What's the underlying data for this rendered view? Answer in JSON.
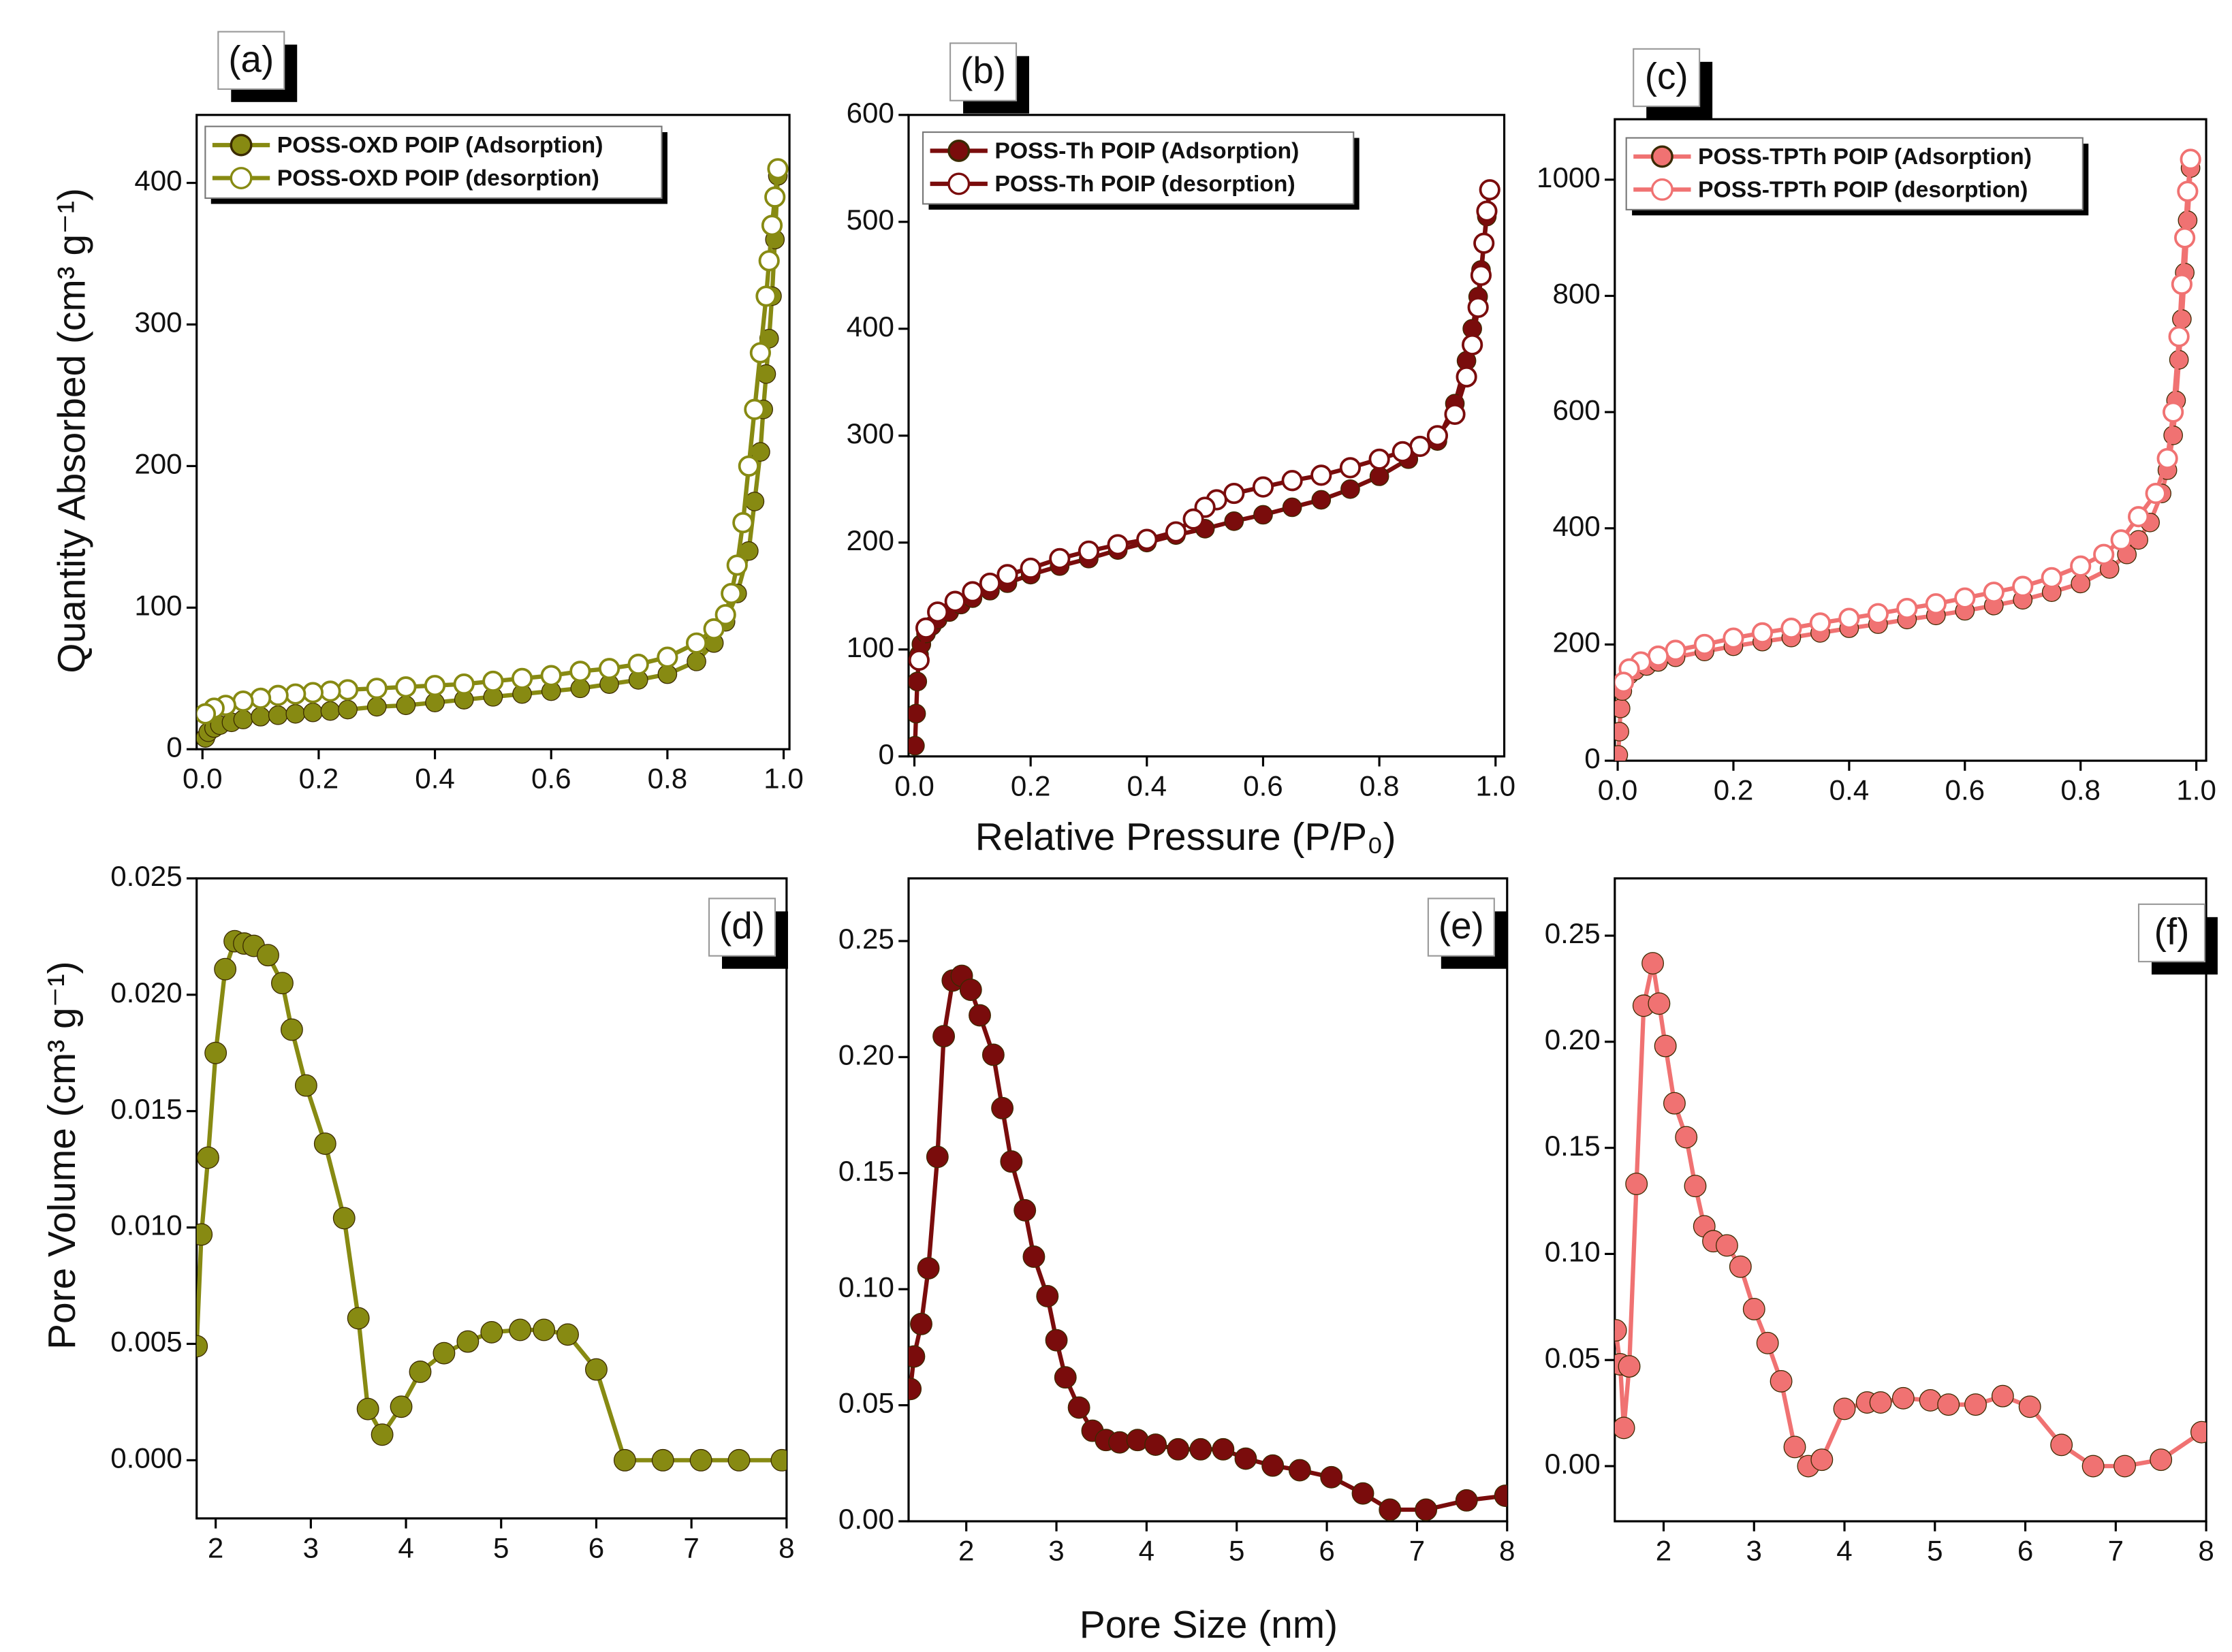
{
  "chart_data": [
    {
      "type": "line",
      "panel_label": "(a)",
      "ylabel": "Quantity Absorbed (cm³ g⁻¹)",
      "xlim": [
        -0.01,
        1.01
      ],
      "ylim": [
        0,
        448
      ],
      "xticks": [
        {
          "value": 0,
          "label": "0.0"
        },
        0.2,
        0.4,
        0.6,
        0.8,
        {
          "value": 1,
          "label": "1.0"
        }
      ],
      "yticks": [
        0,
        100,
        200,
        300,
        400
      ],
      "series": [
        {
          "name": "POSS-OXD POIP (Adsorption)",
          "color": "#878a12",
          "marker": "filled",
          "x": [
            0.005,
            0.01,
            0.02,
            0.03,
            0.05,
            0.07,
            0.1,
            0.13,
            0.16,
            0.19,
            0.22,
            0.25,
            0.3,
            0.35,
            0.4,
            0.45,
            0.5,
            0.55,
            0.6,
            0.65,
            0.7,
            0.75,
            0.8,
            0.85,
            0.88,
            0.9,
            0.92,
            0.94,
            0.95,
            0.96,
            0.965,
            0.97,
            0.975,
            0.98,
            0.985,
            0.99
          ],
          "values": [
            8,
            12,
            15,
            17,
            19,
            21,
            23,
            24,
            25,
            26,
            27,
            28,
            30,
            31,
            33,
            35,
            37,
            39,
            41,
            43,
            46,
            49,
            53,
            62,
            75,
            90,
            110,
            140,
            175,
            210,
            240,
            265,
            290,
            320,
            360,
            405
          ]
        },
        {
          "name": "POSS-OXD POIP (desorption)",
          "color": "#878a12",
          "marker": "open",
          "x": [
            0.99,
            0.985,
            0.98,
            0.975,
            0.97,
            0.96,
            0.95,
            0.94,
            0.93,
            0.92,
            0.91,
            0.9,
            0.88,
            0.85,
            0.8,
            0.75,
            0.7,
            0.65,
            0.6,
            0.55,
            0.5,
            0.45,
            0.4,
            0.35,
            0.3,
            0.25,
            0.22,
            0.19,
            0.16,
            0.13,
            0.1,
            0.07,
            0.04,
            0.02,
            0.005
          ],
          "values": [
            410,
            390,
            370,
            345,
            320,
            280,
            240,
            200,
            160,
            130,
            110,
            95,
            85,
            75,
            65,
            60,
            57,
            55,
            52,
            50,
            48,
            46,
            45,
            44,
            43,
            42,
            41,
            40,
            39,
            38,
            36,
            34,
            31,
            29,
            25
          ]
        }
      ]
    },
    {
      "type": "line",
      "panel_label": "(b)",
      "xlabel": "Relative Pressure (P/P₀)",
      "xlim": [
        -0.01,
        1.015
      ],
      "ylim": [
        0,
        600
      ],
      "xticks": [
        {
          "value": 0,
          "label": "0.0"
        },
        0.2,
        0.4,
        0.6,
        0.8,
        {
          "value": 1,
          "label": "1.0"
        }
      ],
      "yticks": [
        0,
        100,
        200,
        300,
        400,
        500,
        600
      ],
      "series": [
        {
          "name": "POSS-Th POIP (Adsorption)",
          "color": "#7a0c0c",
          "marker": "filled",
          "x": [
            0.001,
            0.003,
            0.005,
            0.008,
            0.012,
            0.02,
            0.03,
            0.04,
            0.06,
            0.08,
            0.1,
            0.13,
            0.16,
            0.2,
            0.25,
            0.3,
            0.35,
            0.4,
            0.45,
            0.5,
            0.55,
            0.6,
            0.65,
            0.7,
            0.75,
            0.8,
            0.85,
            0.9,
            0.93,
            0.95,
            0.96,
            0.97,
            0.975,
            0.98,
            0.985,
            0.99
          ],
          "values": [
            10,
            40,
            70,
            95,
            105,
            115,
            122,
            128,
            135,
            142,
            148,
            155,
            162,
            170,
            178,
            185,
            193,
            200,
            207,
            213,
            220,
            226,
            233,
            240,
            250,
            262,
            278,
            295,
            330,
            370,
            400,
            430,
            455,
            480,
            505,
            530
          ]
        },
        {
          "name": "POSS-Th POIP (desorption)",
          "color": "#7a0c0c",
          "marker": "open",
          "x": [
            0.99,
            0.985,
            0.98,
            0.975,
            0.97,
            0.96,
            0.95,
            0.93,
            0.9,
            0.87,
            0.84,
            0.8,
            0.75,
            0.7,
            0.65,
            0.6,
            0.55,
            0.52,
            0.5,
            0.48,
            0.45,
            0.4,
            0.35,
            0.3,
            0.25,
            0.2,
            0.16,
            0.13,
            0.1,
            0.07,
            0.04,
            0.02,
            0.008
          ],
          "values": [
            530,
            510,
            480,
            450,
            420,
            385,
            355,
            320,
            300,
            290,
            285,
            278,
            270,
            263,
            258,
            252,
            246,
            240,
            233,
            222,
            210,
            203,
            198,
            192,
            185,
            176,
            170,
            162,
            154,
            145,
            135,
            120,
            90
          ]
        }
      ]
    },
    {
      "type": "line",
      "panel_label": "(c)",
      "xlim": [
        -0.005,
        1.017
      ],
      "ylim": [
        0,
        1104
      ],
      "xticks": [
        {
          "value": 0,
          "label": "0.0"
        },
        0.2,
        0.4,
        0.6,
        0.8,
        {
          "value": 1,
          "label": "1.0"
        }
      ],
      "yticks": [
        0,
        200,
        400,
        600,
        800,
        1000
      ],
      "series": [
        {
          "name": "POSS-TPTh POIP (Adsorption)",
          "color": "#f07272",
          "marker": "filled",
          "x": [
            0.001,
            0.003,
            0.005,
            0.008,
            0.012,
            0.02,
            0.03,
            0.05,
            0.07,
            0.1,
            0.15,
            0.2,
            0.25,
            0.3,
            0.35,
            0.4,
            0.45,
            0.5,
            0.55,
            0.6,
            0.65,
            0.7,
            0.75,
            0.8,
            0.85,
            0.88,
            0.9,
            0.92,
            0.94,
            0.95,
            0.96,
            0.965,
            0.97,
            0.975,
            0.98,
            0.985,
            0.99
          ],
          "values": [
            10,
            50,
            90,
            120,
            138,
            148,
            155,
            163,
            170,
            178,
            188,
            197,
            205,
            212,
            220,
            228,
            235,
            243,
            250,
            258,
            267,
            277,
            290,
            305,
            330,
            355,
            380,
            410,
            460,
            500,
            560,
            620,
            690,
            760,
            840,
            930,
            1020
          ]
        },
        {
          "name": "POSS-TPTh POIP (desorption)",
          "color": "#f07272",
          "marker": "open",
          "x": [
            0.99,
            0.985,
            0.98,
            0.975,
            0.97,
            0.96,
            0.95,
            0.93,
            0.9,
            0.87,
            0.84,
            0.8,
            0.75,
            0.7,
            0.65,
            0.6,
            0.55,
            0.5,
            0.45,
            0.4,
            0.35,
            0.3,
            0.25,
            0.2,
            0.15,
            0.1,
            0.07,
            0.04,
            0.02,
            0.01
          ],
          "values": [
            1035,
            980,
            900,
            820,
            730,
            600,
            520,
            460,
            420,
            380,
            355,
            335,
            315,
            300,
            290,
            280,
            270,
            262,
            253,
            245,
            237,
            228,
            220,
            211,
            200,
            190,
            180,
            170,
            158,
            135
          ]
        }
      ]
    },
    {
      "type": "line",
      "panel_label": "(d)",
      "ylabel": "Pore Volume (cm³ g⁻¹)",
      "xlim": [
        1.8,
        8
      ],
      "ylim": [
        -0.0025,
        0.025
      ],
      "xticks": [
        2,
        3,
        4,
        5,
        6,
        7,
        8
      ],
      "yticks": [
        {
          "value": 0,
          "label": "0.000"
        },
        0.005,
        {
          "value": 0.01,
          "label": "0.010"
        },
        0.015,
        {
          "value": 0.02,
          "label": "0.020"
        },
        0.025
      ],
      "series": [
        {
          "color": "#878a12",
          "marker": "filled",
          "x": [
            1.8,
            1.85,
            1.92,
            2.0,
            2.1,
            2.2,
            2.3,
            2.4,
            2.55,
            2.7,
            2.8,
            2.95,
            3.15,
            3.35,
            3.5,
            3.6,
            3.75,
            3.95,
            4.15,
            4.4,
            4.65,
            4.9,
            5.2,
            5.45,
            5.7,
            6.0,
            6.3,
            6.7,
            7.1,
            7.5,
            7.95
          ],
          "values": [
            0.0049,
            0.0097,
            0.013,
            0.0175,
            0.0211,
            0.0223,
            0.0222,
            0.0221,
            0.0217,
            0.0205,
            0.0185,
            0.0161,
            0.0136,
            0.0104,
            0.0061,
            0.0022,
            0.0011,
            0.0023,
            0.0038,
            0.0046,
            0.0051,
            0.0055,
            0.0056,
            0.0056,
            0.0054,
            0.0039,
            0,
            0,
            0,
            0,
            0
          ]
        }
      ]
    },
    {
      "type": "line",
      "panel_label": "(e)",
      "xlabel": "Pore Size (nm)",
      "xlim": [
        1.36,
        8
      ],
      "ylim": [
        0,
        0.277
      ],
      "xticks": [
        2,
        3,
        4,
        5,
        6,
        7,
        8
      ],
      "yticks": [
        {
          "value": 0,
          "label": "0.00"
        },
        0.05,
        {
          "value": 0.1,
          "label": "0.10"
        },
        0.15,
        {
          "value": 0.2,
          "label": "0.20"
        },
        0.25
      ],
      "series": [
        {
          "color": "#7a0c0c",
          "marker": "filled",
          "x": [
            1.38,
            1.42,
            1.5,
            1.58,
            1.68,
            1.75,
            1.85,
            1.95,
            2.05,
            2.15,
            2.3,
            2.4,
            2.5,
            2.65,
            2.75,
            2.9,
            3.0,
            3.1,
            3.25,
            3.4,
            3.55,
            3.7,
            3.9,
            4.1,
            4.35,
            4.6,
            4.85,
            5.1,
            5.4,
            5.7,
            6.05,
            6.4,
            6.7,
            7.1,
            7.55,
            7.98
          ],
          "values": [
            0.057,
            0.071,
            0.085,
            0.109,
            0.157,
            0.209,
            0.233,
            0.235,
            0.229,
            0.218,
            0.201,
            0.178,
            0.155,
            0.134,
            0.114,
            0.097,
            0.078,
            0.062,
            0.049,
            0.039,
            0.035,
            0.034,
            0.035,
            0.033,
            0.031,
            0.031,
            0.031,
            0.027,
            0.024,
            0.022,
            0.019,
            0.012,
            0.005,
            0.005,
            0.009,
            0.011
          ]
        }
      ]
    },
    {
      "type": "line",
      "panel_label": "(f)",
      "xlim": [
        1.46,
        8
      ],
      "ylim": [
        -0.026,
        0.277
      ],
      "xticks": [
        2,
        3,
        4,
        5,
        6,
        7,
        8
      ],
      "yticks": [
        {
          "value": 0,
          "label": "0.00"
        },
        0.05,
        {
          "value": 0.1,
          "label": "0.10"
        },
        0.15,
        {
          "value": 0.2,
          "label": "0.20"
        },
        0.25
      ],
      "series": [
        {
          "color": "#f07272",
          "marker": "filled",
          "x": [
            1.47,
            1.52,
            1.56,
            1.62,
            1.7,
            1.78,
            1.88,
            1.95,
            2.02,
            2.12,
            2.25,
            2.35,
            2.45,
            2.55,
            2.7,
            2.85,
            3.0,
            3.15,
            3.3,
            3.45,
            3.6,
            3.75,
            4.0,
            4.25,
            4.4,
            4.65,
            4.95,
            5.15,
            5.45,
            5.75,
            6.05,
            6.4,
            6.75,
            7.1,
            7.5,
            7.95
          ],
          "values": [
            0.064,
            0.048,
            0.018,
            0.047,
            0.133,
            0.217,
            0.237,
            0.218,
            0.198,
            0.171,
            0.155,
            0.132,
            0.113,
            0.106,
            0.104,
            0.094,
            0.074,
            0.058,
            0.04,
            0.009,
            0,
            0.003,
            0.027,
            0.03,
            0.03,
            0.032,
            0.031,
            0.029,
            0.029,
            0.033,
            0.028,
            0.01,
            0,
            0,
            0.003,
            0.016
          ]
        }
      ]
    }
  ]
}
